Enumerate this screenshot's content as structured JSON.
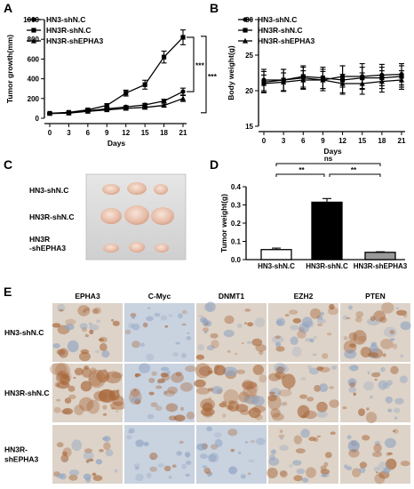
{
  "panels": {
    "A": "A",
    "B": "B",
    "C": "C",
    "D": "D",
    "E": "E"
  },
  "chart_data": [
    {
      "id": "A",
      "type": "line",
      "xlabel": "Days",
      "ylabel": "Tumor growth(mm)",
      "x": [
        0,
        3,
        6,
        9,
        12,
        15,
        18,
        21
      ],
      "xlim": [
        0,
        21
      ],
      "ylim": [
        0,
        1000
      ],
      "yticks": [
        0,
        200,
        400,
        600,
        800,
        1000
      ],
      "legend_position": "top-left",
      "series": [
        {
          "name": "HN3-shN.C",
          "marker": "circle",
          "values": [
            50,
            55,
            75,
            95,
            115,
            135,
            175,
            270
          ],
          "errors": [
            5,
            5,
            8,
            10,
            12,
            15,
            18,
            35
          ]
        },
        {
          "name": "HN3R-shN.C",
          "marker": "square",
          "values": [
            50,
            60,
            85,
            130,
            255,
            340,
            620,
            820
          ],
          "errors": [
            5,
            6,
            10,
            15,
            30,
            45,
            60,
            75
          ]
        },
        {
          "name": "HN3R-shEPHA3",
          "marker": "triangle",
          "values": [
            48,
            52,
            70,
            85,
            100,
            110,
            130,
            200
          ],
          "errors": [
            5,
            5,
            6,
            8,
            10,
            12,
            15,
            30
          ]
        }
      ],
      "annotations": [
        "***",
        "***"
      ]
    },
    {
      "id": "B",
      "type": "line",
      "xlabel": "Days",
      "ylabel": "Body weight(g)",
      "x": [
        0,
        3,
        6,
        9,
        12,
        15,
        18,
        21
      ],
      "xlim": [
        0,
        21
      ],
      "ylim": [
        15,
        30
      ],
      "yticks": [
        15,
        20,
        25,
        30
      ],
      "legend_position": "top-left",
      "series": [
        {
          "name": "HN3-shN.C",
          "marker": "circle",
          "values": [
            21.5,
            21.5,
            21.8,
            21.5,
            22.0,
            22.0,
            22.2,
            22.3
          ],
          "errors": [
            1.5,
            1.5,
            1.5,
            1.5,
            1.5,
            1.8,
            1.5,
            1.5
          ]
        },
        {
          "name": "HN3R-shN.C",
          "marker": "square",
          "values": [
            21.2,
            21.5,
            22.0,
            21.8,
            21.5,
            21.8,
            21.8,
            22.0
          ],
          "errors": [
            1.5,
            1.5,
            1.5,
            1.5,
            2.0,
            1.5,
            1.5,
            1.5
          ]
        },
        {
          "name": "HN3R-shEPHA3",
          "marker": "triangle",
          "values": [
            21.0,
            21.2,
            21.5,
            21.5,
            21.0,
            21.0,
            21.3,
            21.5
          ],
          "errors": [
            1.2,
            1.3,
            1.3,
            1.2,
            1.3,
            1.5,
            1.5,
            1.3
          ]
        }
      ]
    },
    {
      "id": "D",
      "type": "bar",
      "ylabel": "Tumor weight(g)",
      "categories": [
        "HN3-shN.C",
        "HN3R-shN.C",
        "HN3R-shEPHA3"
      ],
      "values": [
        0.055,
        0.315,
        0.04
      ],
      "errors": [
        0.008,
        0.02,
        0.003
      ],
      "ylim": [
        0,
        0.4
      ],
      "yticks": [
        0.0,
        0.1,
        0.2,
        0.3,
        0.4
      ],
      "bar_colors": [
        "#ffffff",
        "#000000",
        "#9a9a9a"
      ],
      "significance": [
        {
          "from": 0,
          "to": 2,
          "label": "ns"
        },
        {
          "from": 0,
          "to": 1,
          "label": "**"
        },
        {
          "from": 1,
          "to": 2,
          "label": "**"
        }
      ]
    }
  ],
  "panelC": {
    "rows": [
      "HN3-shN.C",
      "HN3R-shN.C",
      "HN3R",
      "-shEPHA3"
    ]
  },
  "panelE": {
    "columns": [
      "EPHA3",
      "C-Myc",
      "DNMT1",
      "EZH2",
      "PTEN"
    ],
    "rows": [
      {
        "label_lines": [
          "HN3-shN.C"
        ]
      },
      {
        "label_lines": [
          "HN3R-shN.C"
        ]
      },
      {
        "label_lines": [
          "HN3R-",
          "shEPHA3"
        ]
      }
    ]
  },
  "colors": {
    "ihc_brown": "#b5784a",
    "ihc_blue": "#b4c3d8",
    "tumor_pink": "#e9c3b1"
  }
}
